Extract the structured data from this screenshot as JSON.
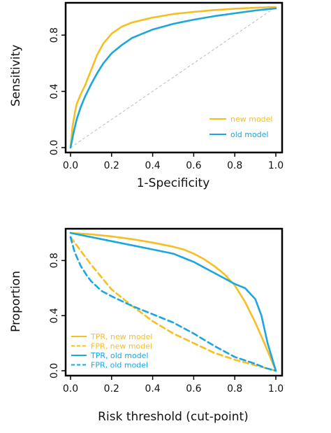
{
  "colors": {
    "new_model": "#F5BE23",
    "old_model": "#1BA6E0",
    "diagonal": "#BBBBBB",
    "axis": "#000000"
  },
  "chart_data": [
    {
      "type": "line",
      "xlabel": "1-Specificity",
      "ylabel": "Sensitivity",
      "xlim": [
        0,
        1
      ],
      "ylim": [
        0,
        1
      ],
      "xticks": [
        "0.0",
        "0.2",
        "0.4",
        "0.6",
        "0.8",
        "1.0"
      ],
      "yticks": [
        "0.0",
        "0.4",
        "0.8"
      ],
      "legend_position": "bottom-right",
      "reference_line": [
        [
          0,
          0
        ],
        [
          1,
          1
        ]
      ],
      "series": [
        {
          "name": "new model",
          "style": "solid",
          "color": "#F5BE23",
          "x": [
            0.0,
            0.01,
            0.02,
            0.03,
            0.05,
            0.07,
            0.1,
            0.13,
            0.16,
            0.2,
            0.25,
            0.3,
            0.4,
            0.5,
            0.6,
            0.7,
            0.8,
            0.9,
            1.0
          ],
          "y": [
            0.0,
            0.15,
            0.24,
            0.31,
            0.38,
            0.44,
            0.55,
            0.66,
            0.74,
            0.81,
            0.86,
            0.89,
            0.925,
            0.95,
            0.965,
            0.978,
            0.988,
            0.995,
            1.0
          ]
        },
        {
          "name": "old model",
          "style": "solid",
          "color": "#1BA6E0",
          "x": [
            0.0,
            0.01,
            0.02,
            0.03,
            0.05,
            0.07,
            0.1,
            0.13,
            0.16,
            0.2,
            0.25,
            0.3,
            0.4,
            0.5,
            0.6,
            0.7,
            0.8,
            0.9,
            1.0
          ],
          "y": [
            0.0,
            0.07,
            0.14,
            0.2,
            0.29,
            0.36,
            0.45,
            0.53,
            0.6,
            0.67,
            0.73,
            0.78,
            0.84,
            0.88,
            0.91,
            0.935,
            0.955,
            0.975,
            0.99
          ]
        }
      ]
    },
    {
      "type": "line",
      "xlabel": "Risk threshold (cut-point)",
      "ylabel": "Proportion",
      "xlim": [
        0,
        1
      ],
      "ylim": [
        0,
        1
      ],
      "xticks": [
        "0.0",
        "0.2",
        "0.4",
        "0.6",
        "0.8",
        "1.0"
      ],
      "yticks": [
        "0.0",
        "0.4",
        "0.8"
      ],
      "legend_position": "bottom-left",
      "series": [
        {
          "name": "TPR, new model",
          "style": "solid",
          "color": "#F5BE23",
          "x": [
            0.0,
            0.05,
            0.1,
            0.2,
            0.3,
            0.4,
            0.5,
            0.55,
            0.6,
            0.65,
            0.7,
            0.75,
            0.8,
            0.85,
            0.9,
            0.95,
            1.0
          ],
          "y": [
            1.0,
            0.995,
            0.99,
            0.975,
            0.955,
            0.93,
            0.9,
            0.88,
            0.85,
            0.81,
            0.76,
            0.7,
            0.62,
            0.5,
            0.35,
            0.18,
            0.0
          ]
        },
        {
          "name": "FPR, new model",
          "style": "dashed",
          "color": "#F5BE23",
          "x": [
            0.0,
            0.05,
            0.1,
            0.15,
            0.2,
            0.3,
            0.4,
            0.5,
            0.6,
            0.7,
            0.8,
            0.9,
            0.95,
            1.0
          ],
          "y": [
            0.97,
            0.87,
            0.77,
            0.68,
            0.59,
            0.47,
            0.36,
            0.27,
            0.2,
            0.13,
            0.08,
            0.04,
            0.02,
            0.0
          ]
        },
        {
          "name": "TPR, old model",
          "style": "solid",
          "color": "#1BA6E0",
          "x": [
            0.0,
            0.05,
            0.1,
            0.2,
            0.3,
            0.4,
            0.5,
            0.55,
            0.6,
            0.65,
            0.7,
            0.75,
            0.8,
            0.85,
            0.9,
            0.93,
            0.96,
            1.0
          ],
          "y": [
            1.0,
            0.985,
            0.97,
            0.94,
            0.91,
            0.88,
            0.85,
            0.82,
            0.79,
            0.75,
            0.71,
            0.67,
            0.63,
            0.6,
            0.52,
            0.4,
            0.2,
            0.0
          ]
        },
        {
          "name": "FPR, old model",
          "style": "dashed",
          "color": "#1BA6E0",
          "x": [
            0.0,
            0.02,
            0.05,
            0.08,
            0.1,
            0.15,
            0.2,
            0.3,
            0.4,
            0.5,
            0.6,
            0.7,
            0.8,
            0.9,
            0.95,
            1.0
          ],
          "y": [
            0.97,
            0.86,
            0.76,
            0.69,
            0.65,
            0.58,
            0.54,
            0.47,
            0.41,
            0.35,
            0.27,
            0.18,
            0.1,
            0.05,
            0.02,
            0.0
          ]
        }
      ]
    }
  ]
}
